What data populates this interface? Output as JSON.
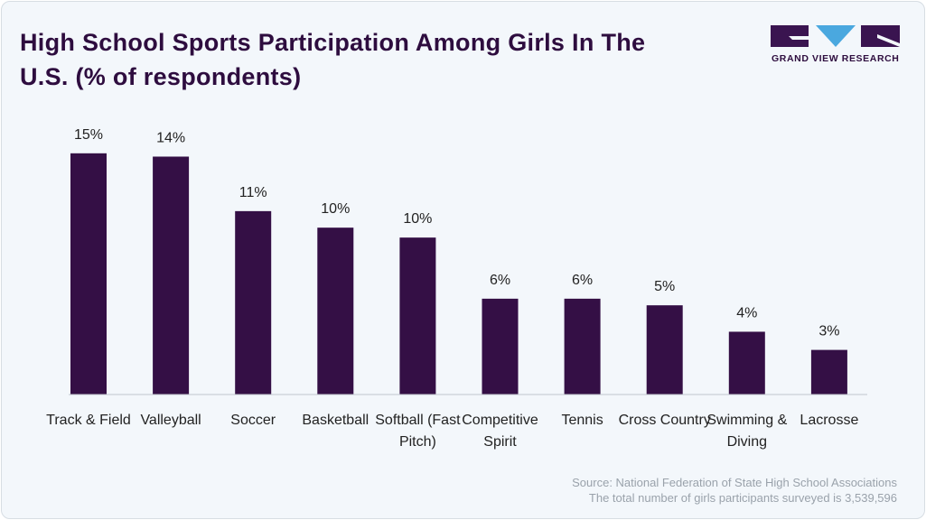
{
  "logo": "GRAND VIEW RESEARCH",
  "chart_data": {
    "type": "bar",
    "title": "High School Sports Participation Among Girls In The U.S. (% of respondents)",
    "categories": [
      "Track & Field",
      "Valleyball",
      "Soccer",
      "Basketball",
      "Softball (Fast Pitch)",
      "Competitive Spirit",
      "Tennis",
      "Cross Country",
      "Swimming & Diving",
      "Lacrosse"
    ],
    "values": [
      14.6,
      14.4,
      11.1,
      10.1,
      9.5,
      5.8,
      5.8,
      5.4,
      3.8,
      2.7
    ],
    "value_labels": [
      "15%",
      "14%",
      "11%",
      "10%",
      "10%",
      "6%",
      "6%",
      "5%",
      "4%",
      "3%"
    ],
    "color": "#340f45",
    "source": "Source: National Federation of State High School Associations",
    "note": "The total number of girls participants surveyed is 3,539,596"
  }
}
